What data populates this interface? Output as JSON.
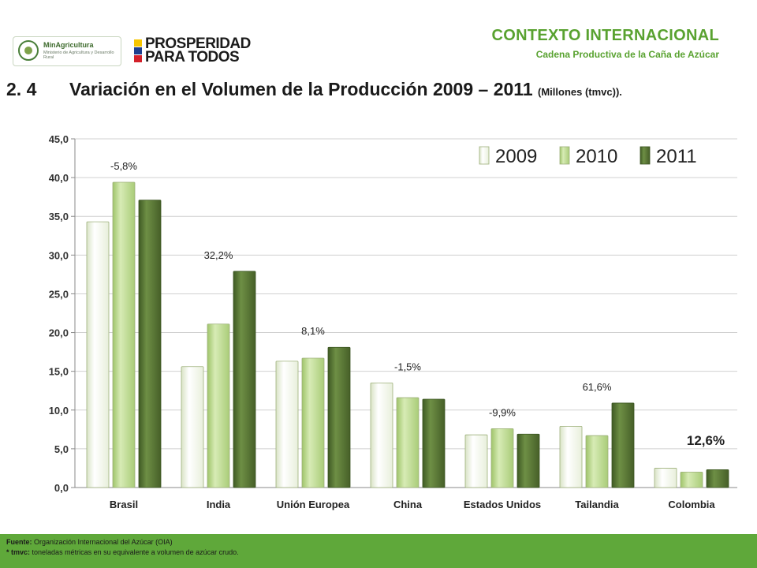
{
  "logos": {
    "ministry_name": "MinAgricultura",
    "ministry_sub": "Ministerio de Agricultura y Desarrollo Rural",
    "prosperidad_line1": "PROSPERIDAD",
    "prosperidad_line2": "PARA TODOS"
  },
  "header": {
    "title": "CONTEXTO INTERNACIONAL",
    "subtitle": "Cadena Productiva de la Caña de Azúcar"
  },
  "slide": {
    "number": "2. 4",
    "title": "Variación en el Volumen de la Producción 2009 – 2011",
    "unit": "(Millones (tmvc))."
  },
  "chart_data": {
    "type": "bar",
    "categories": [
      "Brasil",
      "India",
      "Unión Europea",
      "China",
      "Estados Unidos",
      "Tailandia",
      "Colombia"
    ],
    "series": [
      {
        "name": "2009",
        "values": [
          34.3,
          15.6,
          16.3,
          13.5,
          6.8,
          7.9,
          2.5
        ],
        "color": "#f6f9ee"
      },
      {
        "name": "2010",
        "values": [
          39.4,
          21.1,
          16.7,
          11.6,
          7.6,
          6.7,
          2.0
        ],
        "color": "#bcd88f"
      },
      {
        "name": "2011",
        "values": [
          37.1,
          27.9,
          18.1,
          11.4,
          6.9,
          10.9,
          2.3
        ],
        "color": "#5a7a35"
      }
    ],
    "annotations": [
      "-5,8%",
      "32,2%",
      "8,1%",
      "-1,5%",
      "-9,9%",
      "61,6%",
      "12,6%"
    ],
    "yticks": [
      "0,0",
      "5,0",
      "10,0",
      "15,0",
      "20,0",
      "25,0",
      "30,0",
      "35,0",
      "40,0",
      "45,0"
    ],
    "ylim": [
      0,
      45
    ],
    "grid": true,
    "legend_position": "top-right"
  },
  "footer": {
    "source_label": "Fuente:",
    "source_text": "Organización Internacional del Azúcar (OIA)",
    "note_label": "* tmvc:",
    "note_text": "toneladas métricas en su equivalente a volumen de azúcar crudo."
  },
  "colors": {
    "accent": "#59a230",
    "footer_bg": "#5fa83a"
  }
}
